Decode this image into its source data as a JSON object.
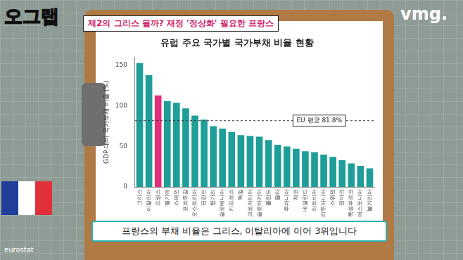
{
  "header": {
    "logo": "오그랩",
    "headline": "제2의 그리스 될까? 재정 '정상화' 필요한 프랑스",
    "brand": "vmg."
  },
  "chart_data": {
    "type": "bar",
    "title": "유럽 주요 국가별 국가부채 비율 현황",
    "y_label": "GDP 대비 국가부채 비율 (%)",
    "categories": [
      "그리스",
      "이탈리아",
      "프랑스",
      "벨기에",
      "스페인",
      "포르투갈",
      "오스트리아",
      "핀란드",
      "헝가리",
      "슬로베니아",
      "키프로스",
      "독일",
      "크로아티아",
      "슬로바키아",
      "폴란드",
      "몰타",
      "루마니아",
      "체코",
      "네덜란드",
      "라트비아",
      "리투아니아",
      "스웨덴",
      "덴마크",
      "룩셈부르크",
      "에스토니아",
      "불가리아"
    ],
    "values": [
      153,
      138,
      113,
      106,
      104,
      97,
      88,
      83,
      75,
      72,
      68,
      64,
      63,
      62,
      58,
      52,
      50,
      47,
      44,
      43,
      40,
      37,
      33,
      29,
      26,
      23
    ],
    "colors": [
      "#1f9e99",
      "#1f9e99",
      "#e0307a",
      "#1f9e99",
      "#1f9e99",
      "#1f9e99",
      "#1f9e99",
      "#1f9e99",
      "#1f9e99",
      "#1f9e99",
      "#1f9e99",
      "#1f9e99",
      "#1f9e99",
      "#1f9e99",
      "#1f9e99",
      "#1f9e99",
      "#1f9e99",
      "#1f9e99",
      "#1f9e99",
      "#1f9e99",
      "#1f9e99",
      "#1f9e99",
      "#1f9e99",
      "#1f9e99",
      "#1f9e99",
      "#1f9e99"
    ],
    "ylim": [
      0,
      160
    ],
    "yticks": [
      0,
      50,
      100,
      150
    ],
    "grid": false,
    "annotations": [
      {
        "text": "EU 평균 81.8%",
        "y": 81.8,
        "line_style": "dashed"
      }
    ]
  },
  "caption": "프랑스의 부채 비율은 그리스, 이탈리아에 이어 3위입니다",
  "source": "eurostat"
}
